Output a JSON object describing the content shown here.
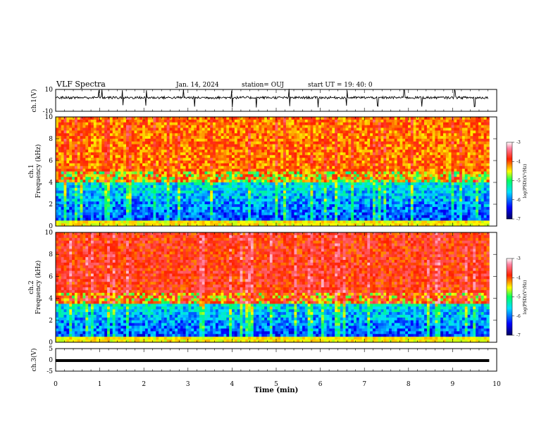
{
  "header": {
    "title": "VLF Spectra",
    "date": "Jan. 14, 2024",
    "station": "station= OUJ",
    "start": "start UT =   19: 40: 0"
  },
  "colors": {
    "spectrogram_low": "#000080",
    "spectrogram_mid": "#00e0e0",
    "spectrogram_high": "#ff2000",
    "saturation": "#ffc0e0",
    "waveform": "#000000"
  },
  "chart_data": [
    {
      "type": "line",
      "panel": "ch1-waveform",
      "ylabel": "ch.1(V)",
      "ylim": [
        -10,
        10
      ],
      "ytick_labels": [
        "10",
        "-10"
      ],
      "xlim": [
        0,
        10
      ],
      "baseline": 2.5,
      "x": [
        0,
        0.5,
        1.0,
        1.5,
        2.0,
        2.5,
        3.0,
        3.5,
        4.0,
        4.5,
        5.0,
        5.5,
        6.0,
        6.5,
        7.0,
        7.5,
        8.0,
        8.5,
        9.0,
        9.5,
        9.8
      ],
      "y": [
        2.5,
        2.5,
        2.5,
        2.5,
        2.5,
        2.5,
        2.5,
        2.5,
        2.5,
        2.5,
        2.5,
        2.5,
        2.5,
        2.5,
        2.5,
        2.5,
        2.5,
        2.5,
        2.5,
        2.5,
        2.5
      ],
      "spikes_x": [
        0.98,
        1.05,
        1.52,
        2.05,
        2.9,
        3.15,
        4.0,
        4.55,
        5.3,
        5.95,
        6.6,
        7.3,
        7.9,
        8.3,
        9.05,
        9.5
      ]
    },
    {
      "type": "heatmap",
      "panel": "ch1-spectrogram",
      "ylabel": "ch.1",
      "ylabel2": "Frequency (kHz)",
      "ylim": [
        0,
        10
      ],
      "ytick_labels": [
        "0",
        "2",
        "4",
        "6",
        "8",
        "10"
      ],
      "xlim": [
        0,
        10
      ],
      "colorbar": {
        "label": "log(PSD)(V²/Hz)",
        "range": [
          -7,
          -3
        ],
        "ticks": [
          "-3",
          "-4",
          "-5",
          "-6",
          "-7"
        ]
      },
      "data_end_min": 9.83,
      "boundary_khz": 4.0
    },
    {
      "type": "heatmap",
      "panel": "ch2-spectrogram",
      "ylabel": "ch.2",
      "ylabel2": "Frequency (kHz)",
      "ylim": [
        0,
        10
      ],
      "ytick_labels": [
        "0",
        "2",
        "4",
        "6",
        "8",
        "10"
      ],
      "xlim": [
        0,
        10
      ],
      "colorbar": {
        "label": "log(PSD)(V²/Hz)",
        "range": [
          -7,
          -3
        ],
        "ticks": [
          "-3",
          "-4",
          "-5",
          "-6",
          "-7"
        ]
      },
      "data_end_min": 9.83,
      "boundary_khz": 3.5
    },
    {
      "type": "line",
      "panel": "ch3-waveform",
      "ylabel": "ch.3(V)",
      "ylim": [
        -5,
        5
      ],
      "ytick_labels": [
        "5",
        "0",
        "-5"
      ],
      "xlim": [
        0,
        10
      ],
      "x": [
        0,
        9.83
      ],
      "y": [
        -0.3,
        -0.3
      ]
    }
  ],
  "xaxis": {
    "label": "Time (min)",
    "ticks": [
      "0",
      "1",
      "2",
      "3",
      "4",
      "5",
      "6",
      "7",
      "8",
      "9",
      "10"
    ]
  }
}
